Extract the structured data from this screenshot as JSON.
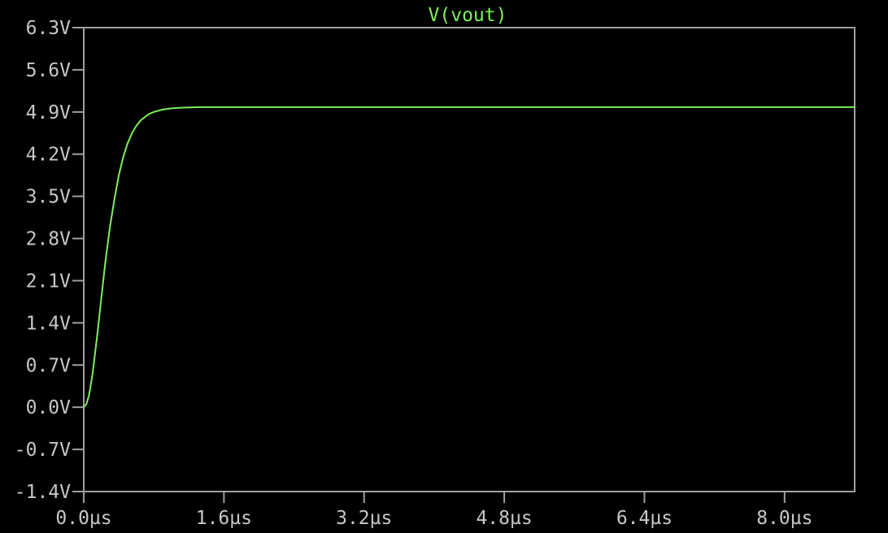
{
  "window": {
    "background": "#000000"
  },
  "chart_data": {
    "type": "line",
    "title": "V(vout)",
    "xlabel": "",
    "ylabel": "",
    "xlim": [
      0.0,
      8.8
    ],
    "ylim": [
      -1.4,
      6.3
    ],
    "x_unit": "µs",
    "y_unit": "V",
    "x_ticks": [
      0.0,
      1.6,
      3.2,
      4.8,
      6.4,
      8.0
    ],
    "x_tick_labels": [
      "0.0µs",
      "1.6µs",
      "3.2µs",
      "4.8µs",
      "6.4µs",
      "8.0µs"
    ],
    "y_ticks": [
      6.3,
      5.6,
      4.9,
      4.2,
      3.5,
      2.8,
      2.1,
      1.4,
      0.7,
      0.0,
      -0.7,
      -1.4
    ],
    "y_tick_labels": [
      "6.3V",
      "5.6V",
      "4.9V",
      "4.2V",
      "3.5V",
      "2.8V",
      "2.1V",
      "1.4V",
      "0.7V",
      "0.0V",
      "-0.7V",
      "-1.4V"
    ],
    "grid": false,
    "colors": {
      "axis": "#a0a0a0",
      "tick_text": "#c8c8c8",
      "trace": "#7cf05a",
      "background": "#000000"
    },
    "series": [
      {
        "name": "V(vout)",
        "color": "#7cf05a",
        "x": [
          0.0,
          0.03,
          0.06,
          0.1,
          0.15,
          0.2,
          0.25,
          0.3,
          0.35,
          0.4,
          0.45,
          0.5,
          0.55,
          0.6,
          0.65,
          0.7,
          0.75,
          0.8,
          0.85,
          0.9,
          0.95,
          1.0,
          1.1,
          1.2,
          1.3,
          1.4,
          1.5,
          1.6,
          1.8,
          2.0,
          2.5,
          3.0,
          4.0,
          5.0,
          6.0,
          7.0,
          8.0,
          8.8
        ],
        "y": [
          0.0,
          0.05,
          0.2,
          0.55,
          1.15,
          1.8,
          2.45,
          3.0,
          3.45,
          3.85,
          4.15,
          4.38,
          4.55,
          4.67,
          4.76,
          4.82,
          4.87,
          4.9,
          4.92,
          4.94,
          4.95,
          4.96,
          4.97,
          4.975,
          4.98,
          4.98,
          4.98,
          4.98,
          4.98,
          4.98,
          4.98,
          4.98,
          4.98,
          4.98,
          4.98,
          4.98,
          4.98,
          4.98
        ]
      }
    ]
  }
}
